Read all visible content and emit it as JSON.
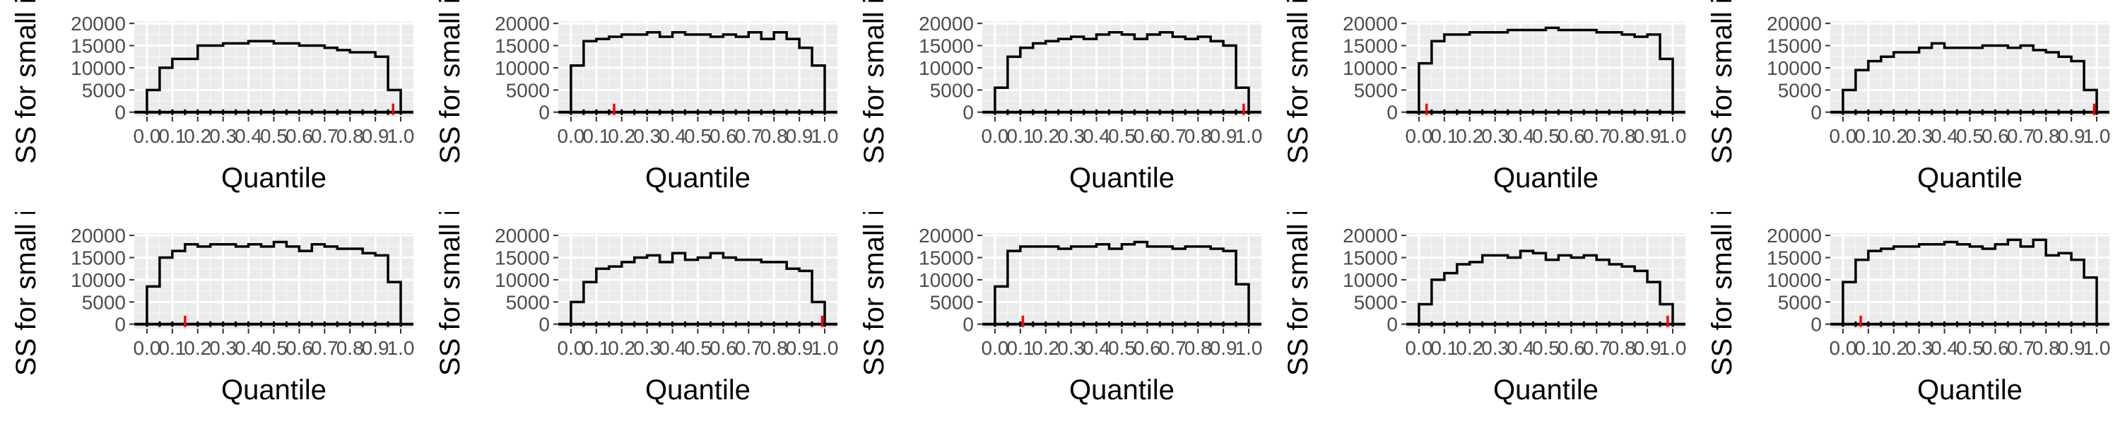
{
  "chart_data": [
    {
      "type": "line",
      "step": "histogram",
      "xlabel": "Quantile",
      "ylabel": "SS for small int",
      "ylim": [
        0,
        20000
      ],
      "y_ticks": [
        0,
        5000,
        10000,
        15000,
        20000
      ],
      "x_ticks": [
        "0.0",
        "0.1",
        "0.2",
        "0.3",
        "0.4",
        "0.5",
        "0.6",
        "0.7",
        "0.8",
        "0.9",
        "1.0"
      ],
      "bin_edges": [
        0,
        0.05,
        0.1,
        0.15,
        0.2,
        0.25,
        0.3,
        0.35,
        0.4,
        0.45,
        0.5,
        0.55,
        0.6,
        0.65,
        0.7,
        0.75,
        0.8,
        0.85,
        0.9,
        0.95,
        1.0
      ],
      "values": [
        5000,
        10000,
        12000,
        12000,
        15000,
        15000,
        15500,
        15500,
        16000,
        16000,
        15500,
        15500,
        15000,
        15000,
        14500,
        14000,
        13500,
        13500,
        12500,
        5000
      ],
      "reference_line": {
        "y": 0,
        "color": "#000000"
      },
      "marker": {
        "x": 0.97,
        "color": "#ff0000"
      }
    },
    {
      "type": "line",
      "step": "histogram",
      "xlabel": "Quantile",
      "ylabel": "SS for small int",
      "ylim": [
        0,
        20000
      ],
      "y_ticks": [
        0,
        5000,
        10000,
        15000,
        20000
      ],
      "x_ticks": [
        "0.0",
        "0.1",
        "0.2",
        "0.3",
        "0.4",
        "0.5",
        "0.6",
        "0.7",
        "0.8",
        "0.9",
        "1.0"
      ],
      "bin_edges": [
        0,
        0.05,
        0.1,
        0.15,
        0.2,
        0.25,
        0.3,
        0.35,
        0.4,
        0.45,
        0.5,
        0.55,
        0.6,
        0.65,
        0.7,
        0.75,
        0.8,
        0.85,
        0.9,
        0.95,
        1.0
      ],
      "values": [
        10500,
        16000,
        16500,
        17000,
        17500,
        17500,
        18000,
        17000,
        18000,
        17500,
        17500,
        17000,
        17500,
        17000,
        18000,
        16500,
        18000,
        16500,
        14500,
        10500
      ],
      "reference_line": {
        "y": 0,
        "color": "#000000"
      },
      "marker": {
        "x": 0.17,
        "color": "#ff0000"
      }
    },
    {
      "type": "line",
      "step": "histogram",
      "xlabel": "Quantile",
      "ylabel": "SS for small int",
      "ylim": [
        0,
        20000
      ],
      "y_ticks": [
        0,
        5000,
        10000,
        15000,
        20000
      ],
      "x_ticks": [
        "0.0",
        "0.1",
        "0.2",
        "0.3",
        "0.4",
        "0.5",
        "0.6",
        "0.7",
        "0.8",
        "0.9",
        "1.0"
      ],
      "bin_edges": [
        0,
        0.05,
        0.1,
        0.15,
        0.2,
        0.25,
        0.3,
        0.35,
        0.4,
        0.45,
        0.5,
        0.55,
        0.6,
        0.65,
        0.7,
        0.75,
        0.8,
        0.85,
        0.9,
        0.95,
        1.0
      ],
      "values": [
        5500,
        12500,
        14500,
        15500,
        16000,
        16500,
        17000,
        16500,
        17500,
        18000,
        17500,
        16500,
        17500,
        18000,
        17000,
        16500,
        17000,
        16000,
        15000,
        5500
      ],
      "reference_line": {
        "y": 0,
        "color": "#000000"
      },
      "marker": {
        "x": 0.98,
        "color": "#ff0000"
      }
    },
    {
      "type": "line",
      "step": "histogram",
      "xlabel": "Quantile",
      "ylabel": "SS for small int",
      "ylim": [
        0,
        20000
      ],
      "y_ticks": [
        0,
        5000,
        10000,
        15000,
        20000
      ],
      "x_ticks": [
        "0.0",
        "0.1",
        "0.2",
        "0.3",
        "0.4",
        "0.5",
        "0.6",
        "0.7",
        "0.8",
        "0.9",
        "1.0"
      ],
      "bin_edges": [
        0,
        0.05,
        0.1,
        0.15,
        0.2,
        0.25,
        0.3,
        0.35,
        0.4,
        0.45,
        0.5,
        0.55,
        0.6,
        0.65,
        0.7,
        0.75,
        0.8,
        0.85,
        0.9,
        0.95,
        1.0
      ],
      "values": [
        11000,
        16000,
        17500,
        17500,
        18000,
        18000,
        18000,
        18500,
        18500,
        18500,
        19000,
        18500,
        18500,
        18500,
        18000,
        18000,
        17500,
        17000,
        17500,
        12000
      ],
      "reference_line": {
        "y": 0,
        "color": "#000000"
      },
      "marker": {
        "x": 0.03,
        "color": "#ff0000"
      }
    },
    {
      "type": "line",
      "step": "histogram",
      "xlabel": "Quantile",
      "ylabel": "SS for small int",
      "ylim": [
        0,
        20000
      ],
      "y_ticks": [
        0,
        5000,
        10000,
        15000,
        20000
      ],
      "x_ticks": [
        "0.0",
        "0.1",
        "0.2",
        "0.3",
        "0.4",
        "0.5",
        "0.6",
        "0.7",
        "0.8",
        "0.9",
        "1.0"
      ],
      "bin_edges": [
        0,
        0.05,
        0.1,
        0.15,
        0.2,
        0.25,
        0.3,
        0.35,
        0.4,
        0.45,
        0.5,
        0.55,
        0.6,
        0.65,
        0.7,
        0.75,
        0.8,
        0.85,
        0.9,
        0.95,
        1.0
      ],
      "values": [
        5000,
        9500,
        11500,
        12500,
        13500,
        13500,
        14500,
        15500,
        14500,
        14500,
        14500,
        15000,
        15000,
        14500,
        15000,
        14000,
        13500,
        12500,
        11500,
        5000
      ],
      "reference_line": {
        "y": 0,
        "color": "#000000"
      },
      "marker": {
        "x": 0.99,
        "color": "#ff0000"
      }
    },
    {
      "type": "line",
      "step": "histogram",
      "xlabel": "Quantile",
      "ylabel": "SS for small int",
      "ylim": [
        0,
        20000
      ],
      "y_ticks": [
        0,
        5000,
        10000,
        15000,
        20000
      ],
      "x_ticks": [
        "0.0",
        "0.1",
        "0.2",
        "0.3",
        "0.4",
        "0.5",
        "0.6",
        "0.7",
        "0.8",
        "0.9",
        "1.0"
      ],
      "bin_edges": [
        0,
        0.05,
        0.1,
        0.15,
        0.2,
        0.25,
        0.3,
        0.35,
        0.4,
        0.45,
        0.5,
        0.55,
        0.6,
        0.65,
        0.7,
        0.75,
        0.8,
        0.85,
        0.9,
        0.95,
        1.0
      ],
      "values": [
        8500,
        15000,
        16500,
        18000,
        17500,
        18000,
        18000,
        17500,
        18000,
        17500,
        18500,
        17500,
        16500,
        18000,
        17500,
        17000,
        17000,
        16000,
        15500,
        9500
      ],
      "reference_line": {
        "y": 0,
        "color": "#000000"
      },
      "marker": {
        "x": 0.15,
        "color": "#ff0000"
      }
    },
    {
      "type": "line",
      "step": "histogram",
      "xlabel": "Quantile",
      "ylabel": "SS for small int",
      "ylim": [
        0,
        20000
      ],
      "y_ticks": [
        0,
        5000,
        10000,
        15000,
        20000
      ],
      "x_ticks": [
        "0.0",
        "0.1",
        "0.2",
        "0.3",
        "0.4",
        "0.5",
        "0.6",
        "0.7",
        "0.8",
        "0.9",
        "1.0"
      ],
      "bin_edges": [
        0,
        0.05,
        0.1,
        0.15,
        0.2,
        0.25,
        0.3,
        0.35,
        0.4,
        0.45,
        0.5,
        0.55,
        0.6,
        0.65,
        0.7,
        0.75,
        0.8,
        0.85,
        0.9,
        0.95,
        1.0
      ],
      "values": [
        5000,
        9500,
        12500,
        13000,
        14000,
        15000,
        15500,
        14000,
        16000,
        14500,
        15000,
        16000,
        15000,
        14500,
        14500,
        14000,
        14000,
        12500,
        12000,
        5000
      ],
      "reference_line": {
        "y": 0,
        "color": "#000000"
      },
      "marker": {
        "x": 0.99,
        "color": "#ff0000"
      }
    },
    {
      "type": "line",
      "step": "histogram",
      "xlabel": "Quantile",
      "ylabel": "SS for small int",
      "ylim": [
        0,
        20000
      ],
      "y_ticks": [
        0,
        5000,
        10000,
        15000,
        20000
      ],
      "x_ticks": [
        "0.0",
        "0.1",
        "0.2",
        "0.3",
        "0.4",
        "0.5",
        "0.6",
        "0.7",
        "0.8",
        "0.9",
        "1.0"
      ],
      "bin_edges": [
        0,
        0.05,
        0.1,
        0.15,
        0.2,
        0.25,
        0.3,
        0.35,
        0.4,
        0.45,
        0.5,
        0.55,
        0.6,
        0.65,
        0.7,
        0.75,
        0.8,
        0.85,
        0.9,
        0.95,
        1.0
      ],
      "values": [
        8500,
        16500,
        17500,
        17500,
        17500,
        17000,
        17500,
        17500,
        18000,
        17000,
        18000,
        18500,
        17500,
        17500,
        17000,
        17500,
        17500,
        17000,
        16500,
        9000
      ],
      "reference_line": {
        "y": 0,
        "color": "#000000"
      },
      "marker": {
        "x": 0.11,
        "color": "#ff0000"
      }
    },
    {
      "type": "line",
      "step": "histogram",
      "xlabel": "Quantile",
      "ylabel": "SS for small int",
      "ylim": [
        0,
        20000
      ],
      "y_ticks": [
        0,
        5000,
        10000,
        15000,
        20000
      ],
      "x_ticks": [
        "0.0",
        "0.1",
        "0.2",
        "0.3",
        "0.4",
        "0.5",
        "0.6",
        "0.7",
        "0.8",
        "0.9",
        "1.0"
      ],
      "bin_edges": [
        0,
        0.05,
        0.1,
        0.15,
        0.2,
        0.25,
        0.3,
        0.35,
        0.4,
        0.45,
        0.5,
        0.55,
        0.6,
        0.65,
        0.7,
        0.75,
        0.8,
        0.85,
        0.9,
        0.95,
        1.0
      ],
      "values": [
        4500,
        10000,
        11500,
        13500,
        14000,
        15500,
        15500,
        15000,
        16500,
        16000,
        14500,
        15500,
        15000,
        15500,
        14500,
        13500,
        13000,
        12000,
        9500,
        4500
      ],
      "reference_line": {
        "y": 0,
        "color": "#000000"
      },
      "marker": {
        "x": 0.98,
        "color": "#ff0000"
      }
    },
    {
      "type": "line",
      "step": "histogram",
      "xlabel": "Quantile",
      "ylabel": "SS for small int",
      "ylim": [
        0,
        20000
      ],
      "y_ticks": [
        0,
        5000,
        10000,
        15000,
        20000
      ],
      "x_ticks": [
        "0.0",
        "0.1",
        "0.2",
        "0.3",
        "0.4",
        "0.5",
        "0.6",
        "0.7",
        "0.8",
        "0.9",
        "1.0"
      ],
      "bin_edges": [
        0,
        0.05,
        0.1,
        0.15,
        0.2,
        0.25,
        0.3,
        0.35,
        0.4,
        0.45,
        0.5,
        0.55,
        0.6,
        0.65,
        0.7,
        0.75,
        0.8,
        0.85,
        0.9,
        0.95,
        1.0
      ],
      "values": [
        9500,
        14500,
        16500,
        17000,
        17500,
        17500,
        18000,
        18000,
        18500,
        18000,
        17500,
        17000,
        18000,
        19000,
        17500,
        19000,
        15500,
        16000,
        14500,
        10500
      ],
      "reference_line": {
        "y": 0,
        "color": "#000000"
      },
      "marker": {
        "x": 0.07,
        "color": "#ff0000"
      }
    }
  ]
}
